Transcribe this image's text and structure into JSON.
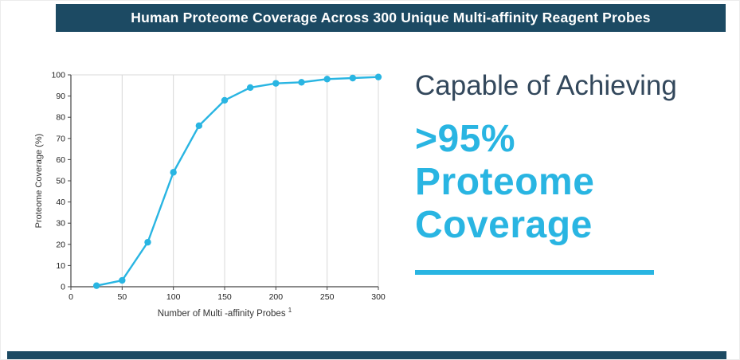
{
  "header": {
    "title": "Human Proteome Coverage Across 300 Unique Multi-affinity Reagent Probes"
  },
  "callout": {
    "intro": "Capable of Achieving",
    "highlight_lines": [
      ">95%",
      "Proteome",
      "Coverage"
    ]
  },
  "colors": {
    "navy": "#1c4a63",
    "text_navy": "#33485c",
    "cyan": "#29b5e2",
    "grid": "#d8d8d8",
    "axis": "#444444"
  },
  "chart_data": {
    "type": "line",
    "title": "",
    "xlabel": "Number of Multi -affinity Probes",
    "xlabel_footnote": "1",
    "ylabel": "Proteome Coverage (%)",
    "x": [
      25,
      50,
      75,
      100,
      125,
      150,
      175,
      200,
      225,
      250,
      275,
      300
    ],
    "values": [
      0.5,
      3,
      21,
      54,
      76,
      88,
      94,
      96,
      96.5,
      98,
      98.5,
      99
    ],
    "xlim": [
      0,
      300
    ],
    "ylim": [
      0,
      100
    ],
    "xticks": [
      0,
      50,
      100,
      150,
      200,
      250,
      300
    ],
    "yticks": [
      0,
      10,
      20,
      30,
      40,
      50,
      60,
      70,
      80,
      90,
      100
    ],
    "grid": "vertical",
    "legend": "none",
    "line_color": "#29b5e2",
    "marker": "circle"
  }
}
